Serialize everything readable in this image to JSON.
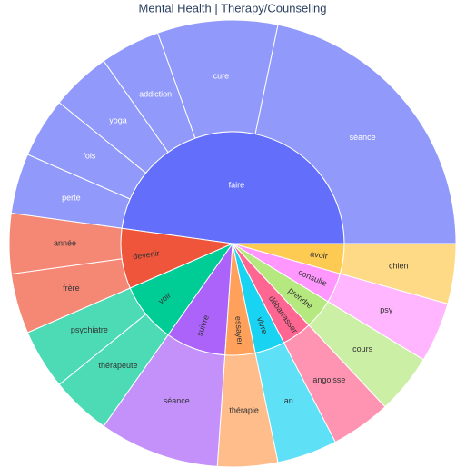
{
  "chart_data": {
    "type": "sunburst",
    "title": "Mental Health | Therapy/Counseling",
    "series": [
      {
        "name": "faire",
        "color": "#636efa",
        "categories": [
          "perte",
          "fois",
          "yoga",
          "addiction",
          "cure",
          "séance"
        ],
        "values": [
          1,
          1,
          1,
          1,
          2,
          5
        ]
      },
      {
        "name": "avoir",
        "color": "#fecb52",
        "categories": [
          "chien"
        ],
        "values": [
          1
        ]
      },
      {
        "name": "consulte",
        "color": "#ff97ff",
        "categories": [
          "psy"
        ],
        "values": [
          1
        ]
      },
      {
        "name": "prendre",
        "color": "#b6e880",
        "categories": [
          "cours"
        ],
        "values": [
          1
        ]
      },
      {
        "name": "débarrasser",
        "color": "#ff6692",
        "categories": [
          "angoisse"
        ],
        "values": [
          1
        ]
      },
      {
        "name": "vivre",
        "color": "#19d3f3",
        "categories": [
          "an"
        ],
        "values": [
          1
        ]
      },
      {
        "name": "essayer",
        "color": "#ffa15a",
        "categories": [
          "thérapie"
        ],
        "values": [
          1
        ]
      },
      {
        "name": "suivre",
        "color": "#ab63fa",
        "categories": [
          "séance"
        ],
        "values": [
          2
        ]
      },
      {
        "name": "voir",
        "color": "#00cc96",
        "categories": [
          "thérapeute",
          "psychiatre"
        ],
        "values": [
          1,
          1
        ]
      },
      {
        "name": "devenir",
        "color": "#ef553b",
        "categories": [
          "frère",
          "année"
        ],
        "values": [
          1,
          1
        ]
      }
    ]
  }
}
